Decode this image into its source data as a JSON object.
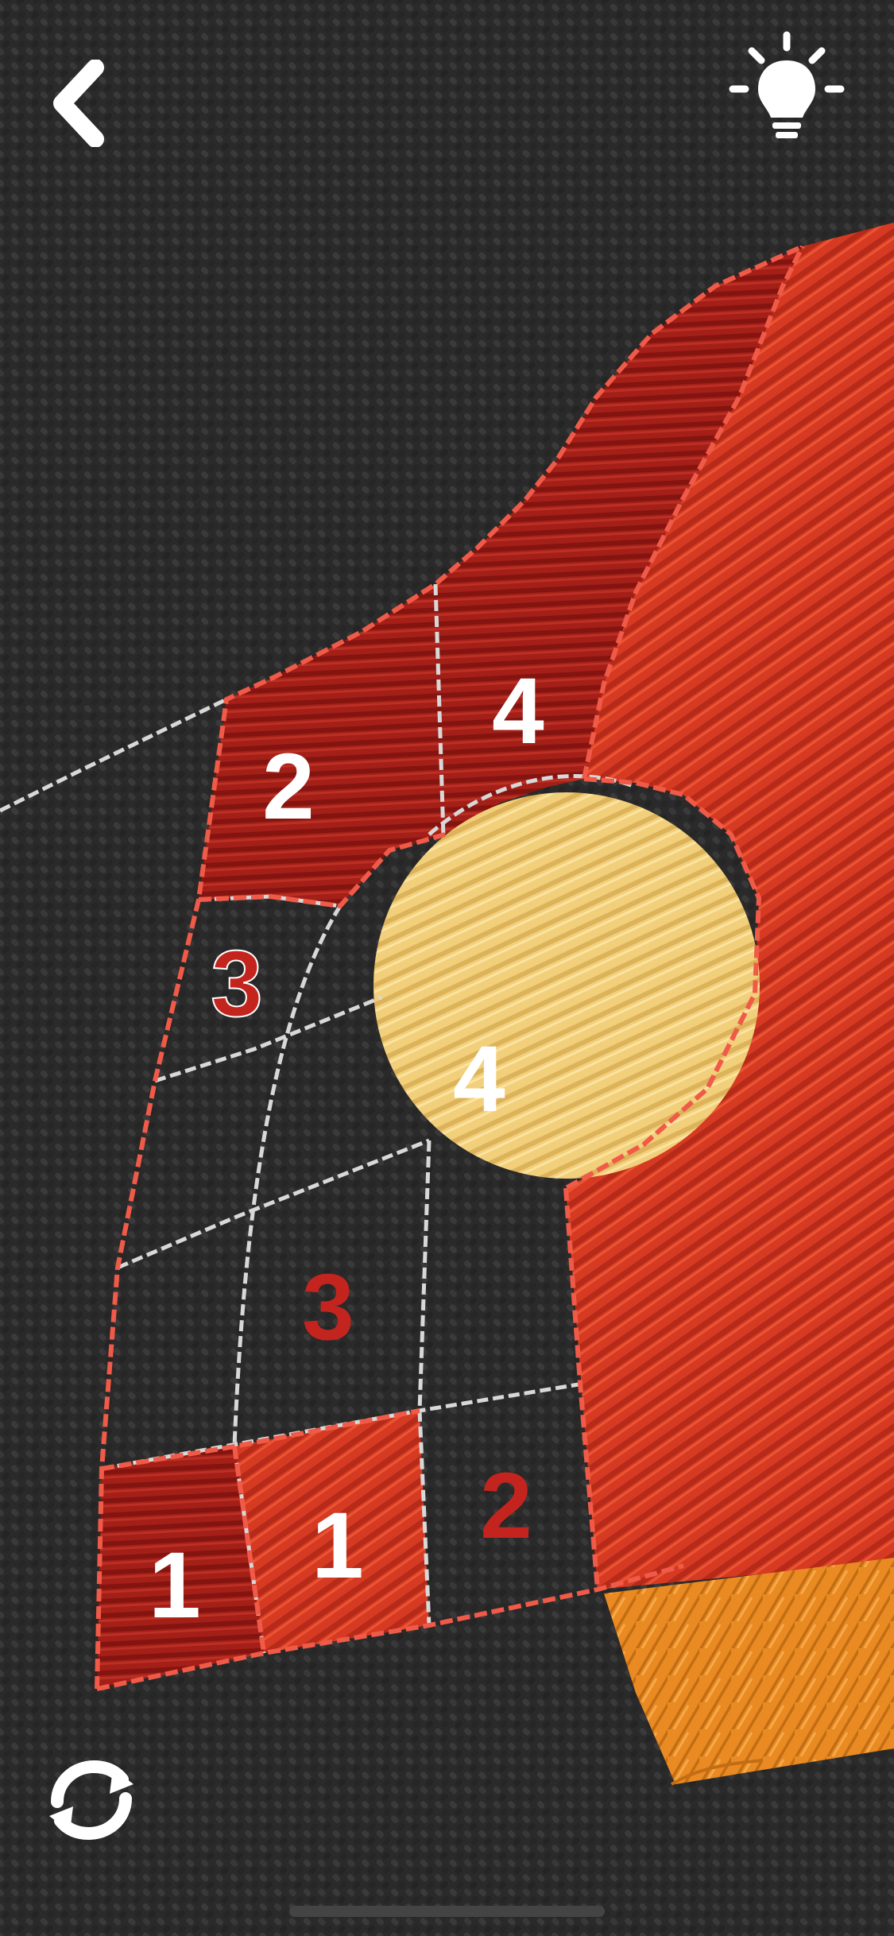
{
  "controls": {
    "back_icon": "chevron-left-icon",
    "hint_icon": "lightbulb-icon",
    "restart_icon": "restart-icon"
  },
  "colors": {
    "fabric": "#2b2b2b",
    "red": "#d63a22",
    "dark_red": "#9e1c18",
    "cream": "#f2cf7a",
    "orange": "#e98a22",
    "stitch_red": "#f05a48",
    "stitch_grey": "#d8d8d8",
    "digit_white": "#ffffff",
    "digit_red": "#c4241e"
  },
  "board": {
    "cells": [
      {
        "label": "2",
        "state": "filled",
        "color": "dark_red"
      },
      {
        "label": "4",
        "state": "filled",
        "color": "dark_red"
      },
      {
        "label": "3",
        "state": "empty",
        "color": "digit_red"
      },
      {
        "label": "4",
        "state": "filled",
        "color": "cream"
      },
      {
        "label": "3",
        "state": "empty",
        "color": "digit_red"
      },
      {
        "label": "1",
        "state": "filled",
        "color": "dark_red"
      },
      {
        "label": "1",
        "state": "filled",
        "color": "red"
      },
      {
        "label": "2",
        "state": "empty",
        "color": "digit_red"
      }
    ]
  }
}
